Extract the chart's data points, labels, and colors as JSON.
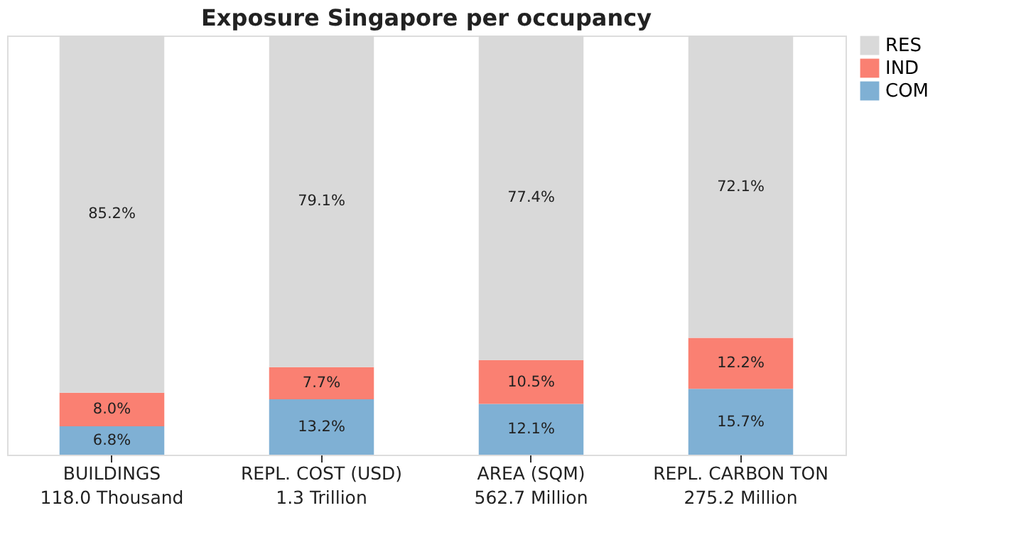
{
  "chart_data": {
    "type": "bar",
    "title": "Exposure Singapore per occupancy",
    "categories": [
      "BUILDINGS\n118.0 Thousand",
      "REPL. COST (USD)\n1.3 Trillion",
      "AREA (SQM)\n562.7 Million",
      "REPL. CARBON TON\n275.2 Million"
    ],
    "stacked": true,
    "ylim": [
      0,
      100
    ],
    "tick_labels": "x",
    "grid": false,
    "legend": "top right",
    "series": [
      {
        "name": "COM",
        "color": "#7fb0d4",
        "values": [
          6.8,
          13.2,
          12.1,
          15.7
        ],
        "value_labels": [
          "6.8%",
          "13.2%",
          "12.1%",
          "15.7%"
        ]
      },
      {
        "name": "IND",
        "color": "#fa8072",
        "values": [
          8.0,
          7.7,
          10.5,
          12.2
        ],
        "value_labels": [
          "8.0%",
          "7.7%",
          "10.5%",
          "12.2%"
        ]
      },
      {
        "name": "RES",
        "color": "#d9d9d9",
        "values": [
          85.2,
          79.1,
          77.4,
          72.1
        ],
        "value_labels": [
          "85.2%",
          "79.1%",
          "77.4%",
          "72.1%"
        ]
      }
    ]
  }
}
